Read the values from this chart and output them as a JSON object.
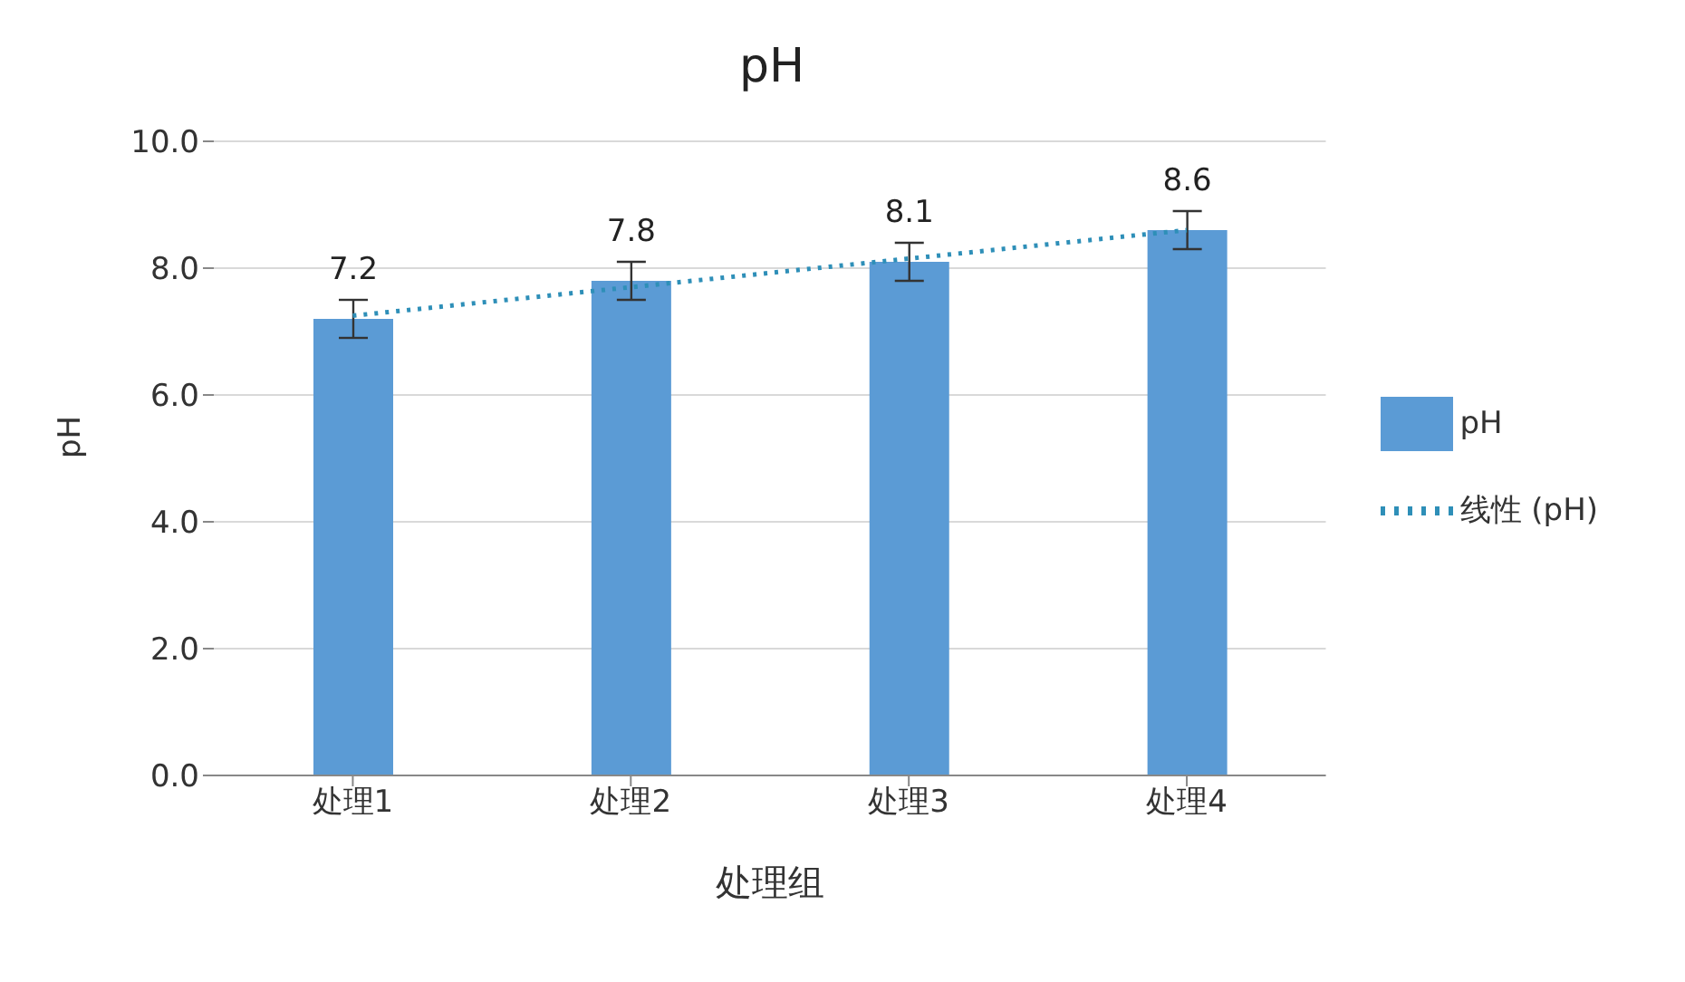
{
  "chart_data": {
    "type": "bar",
    "title": "pH",
    "xlabel": "处理组",
    "ylabel": "pH",
    "categories": [
      "处理1",
      "处理2",
      "处理3",
      "处理4"
    ],
    "series": [
      {
        "name": "pH",
        "color": "#5b9bd5",
        "values": [
          7.2,
          7.8,
          8.1,
          8.6
        ],
        "errors": [
          0.3,
          0.3,
          0.3,
          0.3
        ],
        "value_labels": [
          "7.2",
          "7.8",
          "8.1",
          "8.6"
        ]
      },
      {
        "name": "线性 (pH)",
        "type": "line",
        "color": "#2e8fb8",
        "values": [
          7.25,
          7.7,
          8.15,
          8.6
        ],
        "line_style": "dotted",
        "marker": "none"
      }
    ],
    "ylim": [
      0,
      10
    ],
    "yticks": [
      {
        "value": 0,
        "label": "0.0"
      },
      {
        "value": 2,
        "label": "2.0"
      },
      {
        "value": 4,
        "label": "4.0"
      },
      {
        "value": 6,
        "label": "6.0"
      },
      {
        "value": 8,
        "label": "8.0"
      },
      {
        "value": 10,
        "label": "10.0"
      }
    ],
    "grid": "y",
    "legend": "right"
  }
}
